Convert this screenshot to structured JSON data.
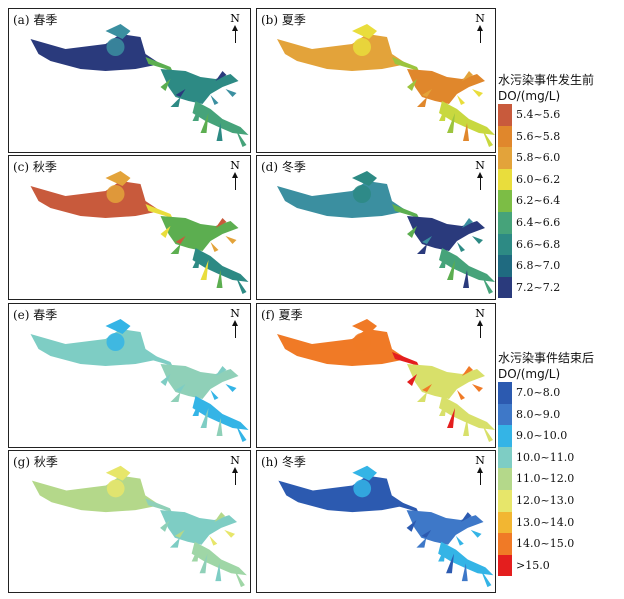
{
  "panels": [
    {
      "id": "a",
      "label": "(a) 春季",
      "north": "N",
      "zones": [
        "#2a3a7c",
        "#3b8fa0",
        "#5cae50",
        "#2d8a84",
        "#46a37a"
      ]
    },
    {
      "id": "b",
      "label": "(b) 夏季",
      "north": "N",
      "zones": [
        "#e3a33a",
        "#e9dd3c",
        "#9cc43e",
        "#e0872c",
        "#c8d83f"
      ]
    },
    {
      "id": "c",
      "label": "(c) 秋季",
      "north": "N",
      "zones": [
        "#c85a3c",
        "#e3a33a",
        "#e9dd3c",
        "#5cae50",
        "#2d8a84"
      ]
    },
    {
      "id": "d",
      "label": "(d) 冬季",
      "north": "N",
      "zones": [
        "#3b8fa0",
        "#2d8a84",
        "#5cae50",
        "#2a3a7c",
        "#46a37a"
      ]
    },
    {
      "id": "e",
      "label": "(e) 春季",
      "north": "N",
      "zones": [
        "#7ecdc4",
        "#34b4e6",
        "#7ecdc4",
        "#8fd0b8",
        "#34b4e6"
      ]
    },
    {
      "id": "f",
      "label": "(f) 夏季",
      "north": "N",
      "zones": [
        "#f07a26",
        "#f07a26",
        "#e41e1e",
        "#d8e06a",
        "#d8e06a"
      ]
    },
    {
      "id": "g",
      "label": "(g) 秋季",
      "north": "N",
      "zones": [
        "#b4d88a",
        "#e7e66a",
        "#8fd0b8",
        "#7ecdc4",
        "#9fd6a6"
      ]
    },
    {
      "id": "h",
      "label": "(h) 冬季",
      "north": "N",
      "zones": [
        "#2c5ab0",
        "#34b4e6",
        "#2c5ab0",
        "#3e78c8",
        "#34b4e6"
      ]
    }
  ],
  "legend_before": {
    "title1": "水污染事件发生前",
    "title2": "DO/(mg/L)",
    "items": [
      {
        "label": "5.4~5.6",
        "color": "#c85a3c"
      },
      {
        "label": "5.6~5.8",
        "color": "#e0872c"
      },
      {
        "label": "5.8~6.0",
        "color": "#e3a33a"
      },
      {
        "label": "6.0~6.2",
        "color": "#e9dd3c"
      },
      {
        "label": "6.2~6.4",
        "color": "#7cbd45"
      },
      {
        "label": "6.4~6.6",
        "color": "#46a37a"
      },
      {
        "label": "6.6~6.8",
        "color": "#2d8a84"
      },
      {
        "label": "6.8~7.0",
        "color": "#1f6a80"
      },
      {
        "label": "7.2~7.2",
        "color": "#2a3a7c"
      }
    ]
  },
  "legend_after": {
    "title1": "水污染事件结束后",
    "title2": "DO/(mg/L)",
    "items": [
      {
        "label": "7.0~8.0",
        "color": "#2c5ab0"
      },
      {
        "label": "8.0~9.0",
        "color": "#3e78c8"
      },
      {
        "label": "9.0~10.0",
        "color": "#34b4e6"
      },
      {
        "label": "10.0~11.0",
        "color": "#7ecdc4"
      },
      {
        "label": "11.0~12.0",
        "color": "#b4d88a"
      },
      {
        "label": "12.0~13.0",
        "color": "#e7e66a"
      },
      {
        "label": "13.0~14.0",
        "color": "#f2b632"
      },
      {
        "label": "14.0~15.0",
        "color": "#f07a26"
      },
      {
        "label": ">15.0",
        "color": "#e41e1e"
      }
    ]
  }
}
